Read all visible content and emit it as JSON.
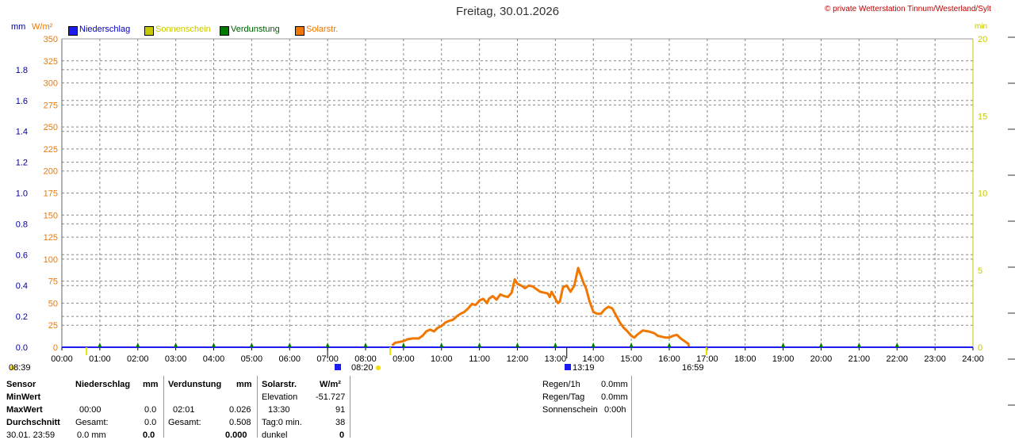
{
  "header": {
    "title": "Freitag, 30.01.2026",
    "copyright": "© private Wetterstation Tinnum/Westerland/Sylt",
    "unit_mm": "mm",
    "unit_wm2": "W/m²",
    "unit_min": "min"
  },
  "legend": [
    {
      "label": "Niederschlag",
      "color": "#1c1cf0",
      "text_color": "#0000c0"
    },
    {
      "label": "Sonnenschein",
      "color": "#c8c800",
      "text_color": "#c8c800"
    },
    {
      "label": "Verdunstung",
      "color": "#007a00",
      "text_color": "#006000"
    },
    {
      "label": "Solarstr.",
      "color": "#f07800",
      "text_color": "#f07800"
    }
  ],
  "chart_data": {
    "type": "line",
    "x_range": [
      "00:00",
      "24:00"
    ],
    "x_ticks": [
      "00:00",
      "01:00",
      "02:00",
      "03:00",
      "04:00",
      "05:00",
      "06:00",
      "07:00",
      "08:00",
      "09:00",
      "10:00",
      "11:00",
      "12:00",
      "13:00",
      "14:00",
      "15:00",
      "16:00",
      "17:00",
      "18:00",
      "19:00",
      "20:00",
      "21:00",
      "22:00",
      "23:00",
      "24:00"
    ],
    "y_left_mm": {
      "range": [
        0,
        2.0
      ],
      "ticks": [
        "0.0",
        "0.2",
        "0.4",
        "0.6",
        "0.8",
        "1.0",
        "1.2",
        "1.4",
        "1.6",
        "1.8"
      ]
    },
    "y_left_wm2": {
      "range": [
        0,
        350
      ],
      "ticks": [
        "0",
        "25",
        "50",
        "75",
        "100",
        "125",
        "150",
        "175",
        "200",
        "225",
        "250",
        "275",
        "300",
        "325",
        "350"
      ]
    },
    "y_right_min": {
      "range": [
        0,
        20
      ],
      "ticks": [
        "0",
        "5",
        "10",
        "15",
        "20"
      ]
    },
    "grid": true,
    "series": [
      {
        "name": "Solarstr.",
        "color": "#f07800",
        "points": [
          [
            8.7,
            2
          ],
          [
            8.78,
            5
          ],
          [
            8.9,
            6
          ],
          [
            9.0,
            7
          ],
          [
            9.1,
            9
          ],
          [
            9.25,
            10
          ],
          [
            9.4,
            10
          ],
          [
            9.5,
            13
          ],
          [
            9.6,
            18
          ],
          [
            9.7,
            20
          ],
          [
            9.8,
            18
          ],
          [
            9.9,
            22
          ],
          [
            10.0,
            24
          ],
          [
            10.1,
            28
          ],
          [
            10.2,
            30
          ],
          [
            10.3,
            31
          ],
          [
            10.4,
            35
          ],
          [
            10.5,
            38
          ],
          [
            10.6,
            40
          ],
          [
            10.7,
            44
          ],
          [
            10.8,
            49
          ],
          [
            10.9,
            48
          ],
          [
            11.0,
            53
          ],
          [
            11.1,
            55
          ],
          [
            11.2,
            50
          ],
          [
            11.25,
            55
          ],
          [
            11.35,
            58
          ],
          [
            11.45,
            54
          ],
          [
            11.55,
            60
          ],
          [
            11.65,
            58
          ],
          [
            11.75,
            57
          ],
          [
            11.85,
            62
          ],
          [
            11.93,
            77
          ],
          [
            12.0,
            72
          ],
          [
            12.1,
            70
          ],
          [
            12.2,
            67
          ],
          [
            12.3,
            70
          ],
          [
            12.4,
            69
          ],
          [
            12.5,
            66
          ],
          [
            12.6,
            63
          ],
          [
            12.7,
            62
          ],
          [
            12.8,
            61
          ],
          [
            12.85,
            57
          ],
          [
            12.9,
            63
          ],
          [
            13.0,
            55
          ],
          [
            13.07,
            50
          ],
          [
            13.12,
            52
          ],
          [
            13.2,
            68
          ],
          [
            13.3,
            70
          ],
          [
            13.4,
            63
          ],
          [
            13.5,
            70
          ],
          [
            13.55,
            80
          ],
          [
            13.6,
            90
          ],
          [
            13.65,
            84
          ],
          [
            13.7,
            78
          ],
          [
            13.75,
            72
          ],
          [
            13.8,
            68
          ],
          [
            13.85,
            60
          ],
          [
            13.9,
            52
          ],
          [
            13.95,
            46
          ],
          [
            14.0,
            40
          ],
          [
            14.1,
            38
          ],
          [
            14.2,
            38
          ],
          [
            14.3,
            43
          ],
          [
            14.4,
            46
          ],
          [
            14.5,
            44
          ],
          [
            14.6,
            36
          ],
          [
            14.7,
            28
          ],
          [
            14.8,
            22
          ],
          [
            14.9,
            18
          ],
          [
            15.0,
            13
          ],
          [
            15.08,
            11
          ],
          [
            15.15,
            14
          ],
          [
            15.3,
            19
          ],
          [
            15.45,
            18
          ],
          [
            15.6,
            16
          ],
          [
            15.7,
            13
          ],
          [
            15.8,
            12
          ],
          [
            15.9,
            11
          ],
          [
            16.0,
            11
          ],
          [
            16.1,
            13
          ],
          [
            16.2,
            14
          ],
          [
            16.3,
            10
          ],
          [
            16.4,
            7
          ],
          [
            16.5,
            4
          ],
          [
            16.52,
            1
          ]
        ]
      },
      {
        "name": "Niederschlag",
        "color": "#1c1cf0",
        "points": [
          [
            0,
            0
          ],
          [
            24,
            0
          ]
        ]
      }
    ],
    "markers_top": [
      "01:00",
      "02:00",
      "03:00",
      "04:00",
      "05:00",
      "06:00",
      "07:00",
      "08:00",
      "09:00",
      "10:00",
      "11:00",
      "12:00",
      "13:00",
      "14:00",
      "15:00",
      "16:00",
      "19:00",
      "20:00",
      "21:00",
      "22:00"
    ],
    "sun_events": [
      {
        "label": "08:39",
        "kind": "sunrise"
      },
      {
        "label": "08:20",
        "kind": "twilight"
      },
      {
        "label": "13:19",
        "kind": "noon"
      },
      {
        "label": "16:59",
        "kind": "sunset"
      }
    ]
  },
  "stats": {
    "col_sensor": {
      "header": "Sensor",
      "min": "MinWert",
      "max": "MaxWert",
      "avg": "Durchschnitt",
      "date": "30.01. 23:59"
    },
    "niederschlag": {
      "header": "Niederschlag",
      "unit": "mm",
      "max_time": "00:00",
      "max_val": "0.0",
      "total_lbl": "Gesamt:",
      "total_val": "0.0",
      "last_val": "0.0 mm",
      "last_bold": "0.0"
    },
    "verdunstung": {
      "header": "Verdunstung",
      "unit": "mm",
      "max_time": "02:01",
      "max_val": "0.026",
      "total_lbl": "Gesamt:",
      "total_val": "0.508",
      "last_bold": "0.000"
    },
    "solar": {
      "header": "Solarstr.",
      "unit": "W/m²",
      "elev_lbl": "Elevation",
      "elev_val": "-51.727",
      "max_time": "13:30",
      "max_val": "91",
      "tag_lbl": "Tag:0 min.",
      "tag_val": "38",
      "dunkel_lbl": "dunkel",
      "dunkel_val": "0"
    },
    "regen": {
      "r1h_lbl": "Regen/1h",
      "r1h_val": "0.0mm",
      "rtag_lbl": "Regen/Tag",
      "rtag_val": "0.0mm",
      "sonne_lbl": "Sonnenschein",
      "sonne_val": "0:00h"
    }
  }
}
